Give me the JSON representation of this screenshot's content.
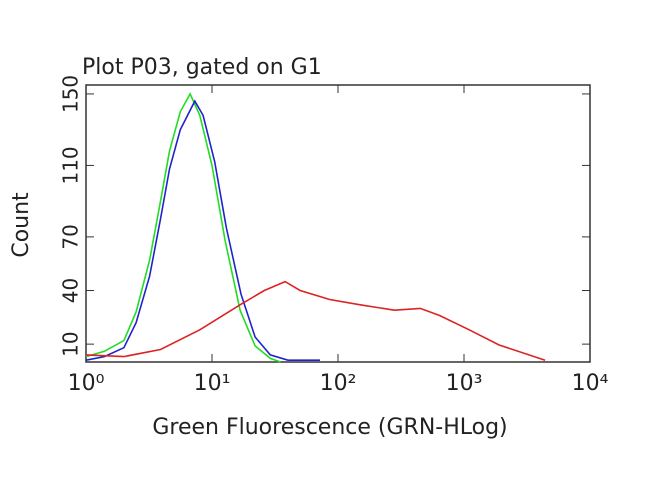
{
  "chart_data": {
    "type": "line",
    "title": "Plot P03, gated on G1",
    "x_label": "Green Fluorescence (GRN-HLog)",
    "y_label": "Count",
    "xscale": "log",
    "xlim": [
      1,
      10000
    ],
    "xticks": [
      {
        "value": 1,
        "label": "10⁰"
      },
      {
        "value": 10,
        "label": "10¹"
      },
      {
        "value": 100,
        "label": "10²"
      },
      {
        "value": 1000,
        "label": "10³"
      },
      {
        "value": 10000,
        "label": "10⁴"
      }
    ],
    "ylim": [
      0,
      155
    ],
    "yticks": [
      10,
      40,
      70,
      110,
      150
    ],
    "series": [
      {
        "color": "#22dd22",
        "x": [
          1,
          1.4,
          2,
          2.5,
          3.2,
          3.9,
          4.6,
          5.6,
          6.7,
          8,
          10,
          12.7,
          16.7,
          22,
          29,
          35
        ],
        "values": [
          3,
          6,
          12,
          28,
          57,
          90,
          118,
          140,
          150,
          138,
          110,
          68,
          29,
          9,
          2,
          0
        ]
      },
      {
        "color": "#2222cc",
        "x": [
          1,
          1.4,
          2,
          2.5,
          3.2,
          3.9,
          4.6,
          5.6,
          7.3,
          8.5,
          10.5,
          13,
          17,
          22,
          29,
          40,
          72
        ],
        "values": [
          1,
          3,
          8,
          22,
          48,
          80,
          108,
          130,
          146,
          138,
          112,
          75,
          38,
          14,
          4,
          1,
          1
        ]
      },
      {
        "color": "#dd2222",
        "x": [
          1,
          2,
          3.9,
          8,
          16.7,
          26,
          38,
          50,
          86,
          150,
          280,
          450,
          640,
          1100,
          1900,
          4400
        ],
        "values": [
          4,
          3,
          7,
          18,
          32,
          40,
          45,
          40,
          35,
          32,
          29,
          30,
          26,
          18,
          9.5,
          1
        ]
      }
    ]
  }
}
